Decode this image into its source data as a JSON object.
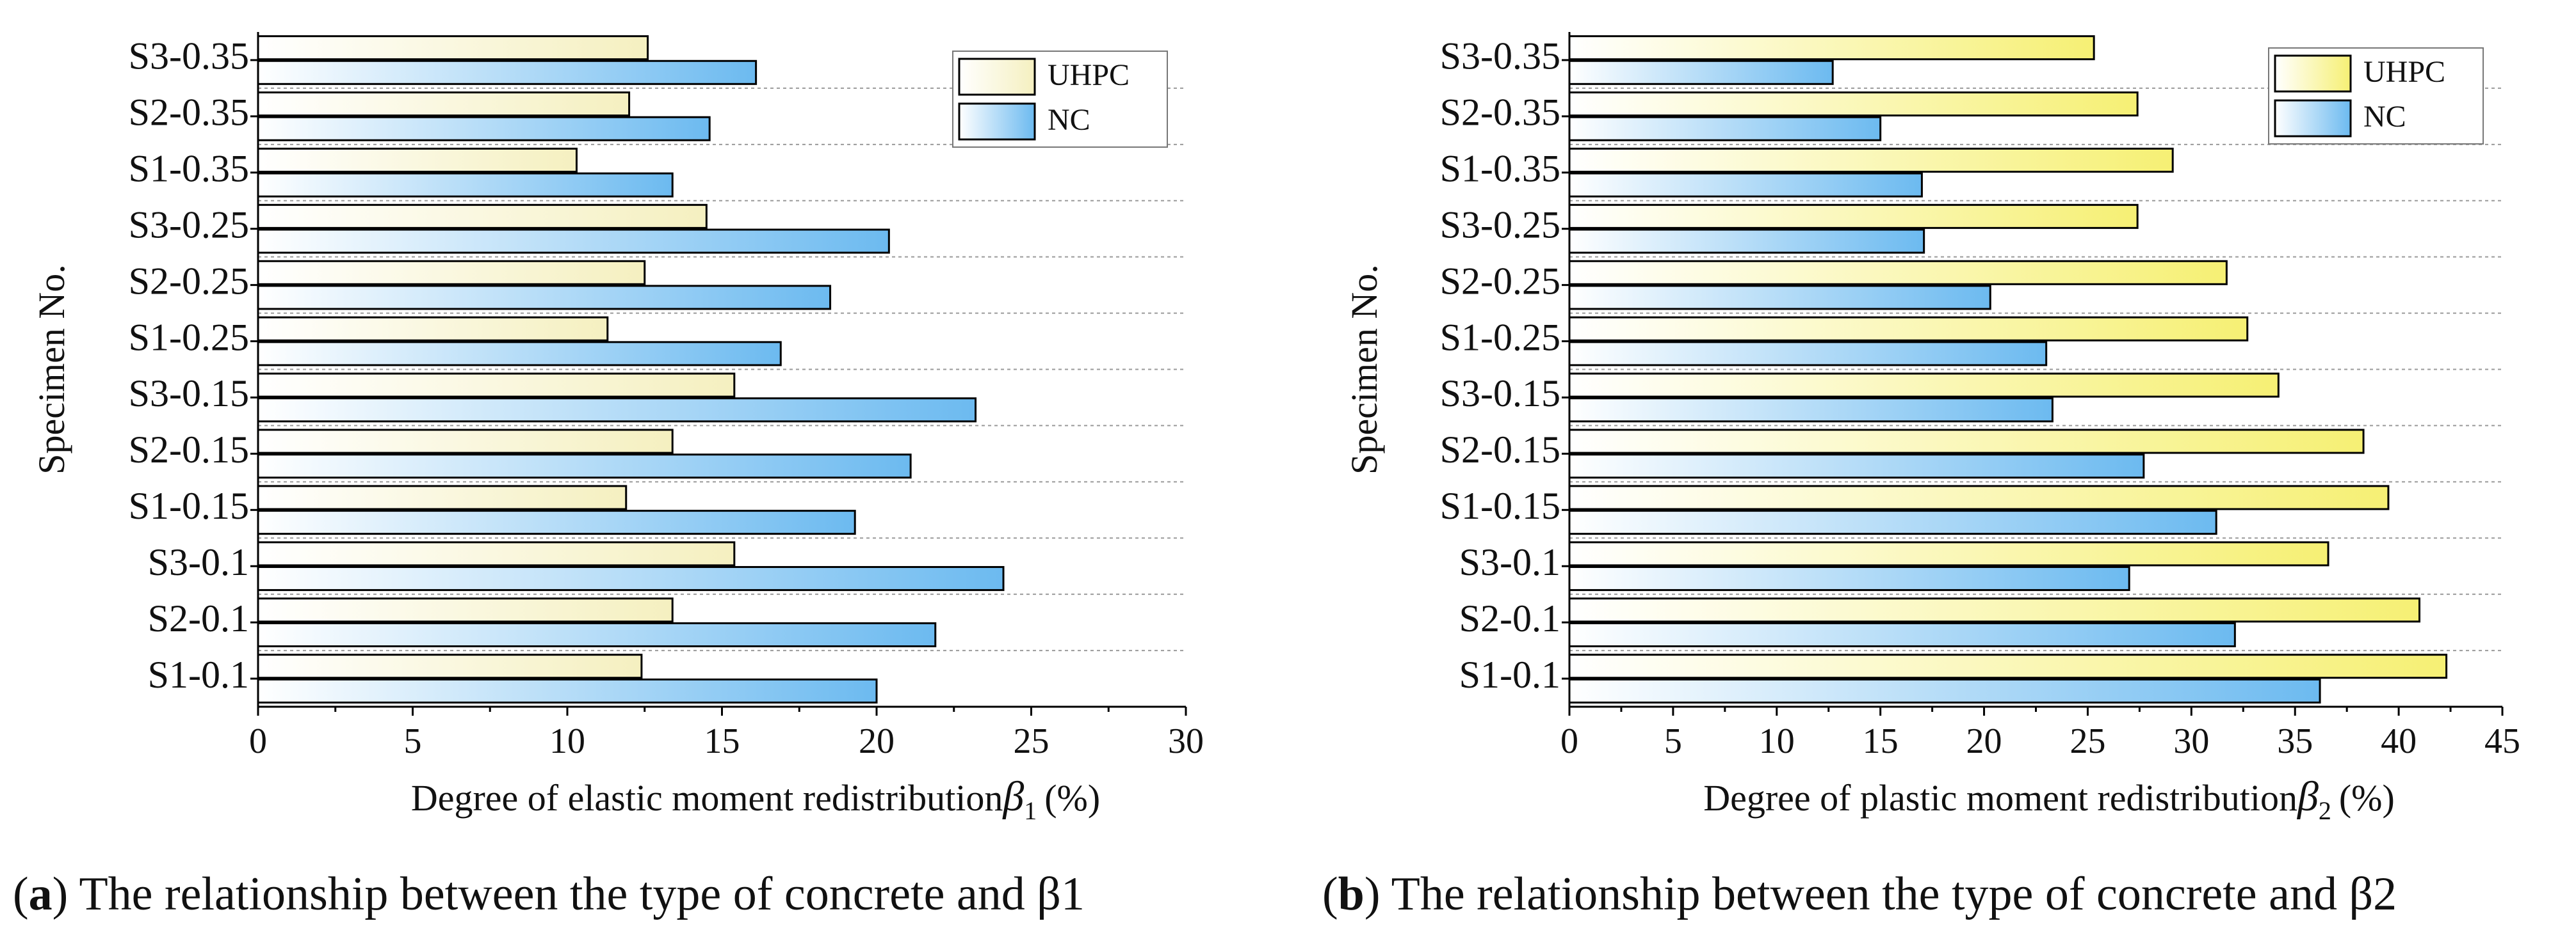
{
  "chart_data": [
    {
      "type": "bar",
      "orientation": "horizontal",
      "panel_id": "a",
      "caption": "The relationship between the type of concrete and β1",
      "xlabel": "Degree of elastic moment redistribution",
      "xlabel_symbol": "β",
      "xlabel_subscript": "1",
      "xlabel_unit": "(%)",
      "ylabel": "Specimen No.",
      "xlim": [
        0,
        30
      ],
      "xticks": [
        "0",
        "5",
        "10",
        "15",
        "20",
        "25",
        "30"
      ],
      "categories": [
        "S1-0.1",
        "S2-0.1",
        "S3-0.1",
        "S1-0.15",
        "S2-0.15",
        "S3-0.15",
        "S1-0.25",
        "S2-0.25",
        "S3-0.25",
        "S1-0.35",
        "S2-0.35",
        "S3-0.35"
      ],
      "series": [
        {
          "name": "UHPC",
          "color": "#f5f0c0",
          "values": [
            12.4,
            13.4,
            15.4,
            11.9,
            13.4,
            15.4,
            11.3,
            12.5,
            14.5,
            10.3,
            12.0,
            12.6
          ]
        },
        {
          "name": "NC",
          "color": "#6cbaf0",
          "values": [
            20.0,
            21.9,
            24.1,
            19.3,
            21.1,
            23.2,
            16.9,
            18.5,
            20.4,
            13.4,
            14.6,
            16.1
          ]
        }
      ],
      "legend": "top-right",
      "grid": "dotted horizontal separators"
    },
    {
      "type": "bar",
      "orientation": "horizontal",
      "panel_id": "b",
      "caption": "The relationship between the type of concrete and β2",
      "xlabel": "Degree of plastic moment redistribution",
      "xlabel_symbol": "β",
      "xlabel_subscript": "2",
      "xlabel_unit": "(%)",
      "ylabel": "Specimen No.",
      "xlim": [
        0,
        45
      ],
      "xticks": [
        "0",
        "5",
        "10",
        "15",
        "20",
        "25",
        "30",
        "35",
        "40",
        "45"
      ],
      "categories": [
        "S1-0.1",
        "S2-0.1",
        "S3-0.1",
        "S1-0.15",
        "S2-0.15",
        "S3-0.15",
        "S1-0.25",
        "S2-0.25",
        "S3-0.25",
        "S1-0.35",
        "S2-0.35",
        "S3-0.35"
      ],
      "series": [
        {
          "name": "UHPC",
          "color": "#f6f074",
          "values": [
            42.3,
            41.0,
            36.6,
            39.5,
            38.3,
            34.2,
            32.7,
            31.7,
            27.4,
            29.1,
            27.4,
            25.3
          ]
        },
        {
          "name": "NC",
          "color": "#6cbaf0",
          "values": [
            36.2,
            32.1,
            27.0,
            31.2,
            27.7,
            23.3,
            23.0,
            20.3,
            17.1,
            17.0,
            15.0,
            12.7
          ]
        }
      ],
      "legend": "top-right",
      "grid": "dotted horizontal separators"
    }
  ]
}
